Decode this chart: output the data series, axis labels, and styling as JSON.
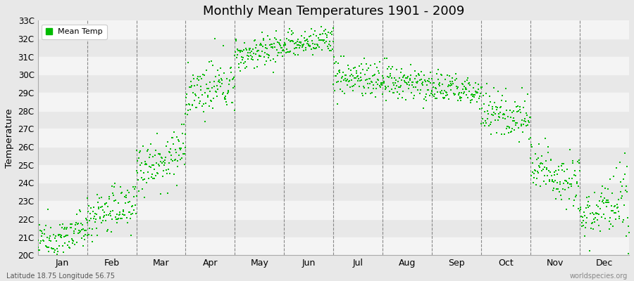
{
  "title": "Monthly Mean Temperatures 1901 - 2009",
  "ylabel": "Temperature",
  "xlabel": "",
  "bottom_left_text": "Latitude 18.75 Longitude 56.75",
  "bottom_right_text": "worldspecies.org",
  "legend_label": "Mean Temp",
  "dot_color": "#00BB00",
  "dot_size": 3,
  "background_color": "#E8E8E8",
  "plot_bg_color": "#E8E8E8",
  "band_color_light": "#F4F4F4",
  "ylim": [
    20,
    33
  ],
  "ytick_labels": [
    "20C",
    "21C",
    "22C",
    "23C",
    "24C",
    "25C",
    "26C",
    "27C",
    "28C",
    "29C",
    "30C",
    "31C",
    "32C",
    "33C"
  ],
  "ytick_values": [
    20,
    21,
    22,
    23,
    24,
    25,
    26,
    27,
    28,
    29,
    30,
    31,
    32,
    33
  ],
  "month_labels": [
    "Jan",
    "Feb",
    "Mar",
    "Apr",
    "May",
    "Jun",
    "Jul",
    "Aug",
    "Sep",
    "Oct",
    "Nov",
    "Dec"
  ],
  "month_boundaries": [
    1,
    2,
    3,
    4,
    5,
    6,
    7,
    8,
    9,
    10,
    11
  ],
  "num_years": 109,
  "monthly_means": [
    21.0,
    22.5,
    25.3,
    29.2,
    31.3,
    31.8,
    29.8,
    29.5,
    29.2,
    27.8,
    24.5,
    22.5
  ],
  "monthly_trends": [
    0.008,
    0.007,
    0.008,
    0.007,
    0.005,
    0.004,
    -0.003,
    -0.002,
    -0.002,
    -0.003,
    -0.005,
    0.005
  ],
  "monthly_spreads": [
    0.55,
    0.65,
    0.75,
    0.7,
    0.45,
    0.4,
    0.55,
    0.5,
    0.45,
    0.65,
    0.75,
    0.9
  ]
}
